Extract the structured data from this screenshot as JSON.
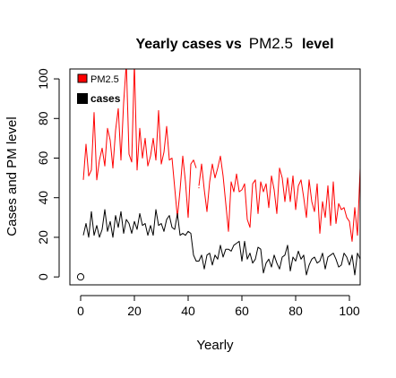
{
  "chart_data": {
    "type": "line",
    "title_parts": {
      "pre": "Yearly cases vs",
      "mid": "PM2.5",
      "post": "level"
    },
    "xlabel": "Yearly",
    "ylabel": "Cases and PM level",
    "xlim": [
      -4,
      104
    ],
    "ylim": [
      -4,
      105
    ],
    "x_ticks": [
      0,
      20,
      40,
      60,
      80,
      100
    ],
    "y_ticks": [
      0,
      20,
      40,
      60,
      80,
      100
    ],
    "grid": false,
    "legend": {
      "position": "top-left"
    },
    "series": [
      {
        "name": "PM2.5",
        "color": "#ff0000",
        "points": [
          [
            1,
            49
          ],
          [
            2,
            67
          ],
          [
            3,
            51
          ],
          [
            4,
            54
          ],
          [
            5,
            83
          ],
          [
            6,
            49
          ],
          [
            7,
            59
          ],
          [
            8,
            65
          ],
          [
            9,
            56
          ],
          [
            10,
            75
          ],
          [
            11,
            69
          ],
          [
            12,
            55
          ],
          [
            13,
            74
          ],
          [
            14,
            85
          ],
          [
            15,
            59
          ],
          [
            16,
            88
          ],
          [
            17,
            108
          ],
          [
            18,
            62
          ],
          [
            19,
            58
          ],
          [
            20,
            108
          ],
          [
            21,
            54
          ],
          [
            22,
            75
          ],
          [
            23,
            60
          ],
          [
            24,
            70
          ],
          [
            25,
            56
          ],
          [
            26,
            61
          ],
          [
            27,
            70
          ],
          [
            28,
            59
          ],
          [
            29,
            84
          ],
          [
            30,
            57
          ],
          [
            31,
            63
          ],
          [
            32,
            76
          ],
          [
            33,
            59
          ],
          [
            34,
            60
          ],
          [
            35,
            45
          ],
          [
            36,
            30
          ],
          [
            37,
            44
          ],
          [
            38,
            61
          ],
          [
            39,
            48
          ],
          [
            40,
            30
          ],
          [
            41,
            57
          ],
          [
            42,
            59
          ],
          [
            43,
            55
          ],
          [
            44,
            46
          ],
          [
            45,
            57
          ],
          [
            46,
            44
          ],
          [
            47,
            33
          ],
          [
            48,
            48
          ],
          [
            49,
            57
          ],
          [
            50,
            50
          ],
          [
            51,
            55
          ],
          [
            52,
            61
          ],
          [
            53,
            51
          ],
          [
            54,
            37
          ],
          [
            55,
            23
          ],
          [
            56,
            48
          ],
          [
            57,
            43
          ],
          [
            58,
            52
          ],
          [
            59,
            43
          ],
          [
            60,
            44
          ],
          [
            61,
            47
          ],
          [
            62,
            29
          ],
          [
            63,
            25
          ],
          [
            64,
            47
          ],
          [
            65,
            49
          ],
          [
            66,
            32
          ],
          [
            67,
            48
          ],
          [
            68,
            43
          ],
          [
            69,
            47
          ],
          [
            70,
            35
          ],
          [
            71,
            51
          ],
          [
            72,
            44
          ],
          [
            73,
            32
          ],
          [
            74,
            55
          ],
          [
            75,
            50
          ],
          [
            76,
            38
          ],
          [
            77,
            50
          ],
          [
            78,
            38
          ],
          [
            79,
            51
          ],
          [
            80,
            34
          ],
          [
            81,
            46
          ],
          [
            82,
            49
          ],
          [
            83,
            40
          ],
          [
            84,
            30
          ],
          [
            85,
            49
          ],
          [
            86,
            38
          ],
          [
            87,
            33
          ],
          [
            88,
            47
          ],
          [
            89,
            22
          ],
          [
            90,
            38
          ],
          [
            91,
            30
          ],
          [
            92,
            46
          ],
          [
            93,
            26
          ],
          [
            94,
            48
          ],
          [
            95,
            27
          ],
          [
            96,
            37
          ],
          [
            97,
            34
          ],
          [
            98,
            35
          ],
          [
            99,
            30
          ],
          [
            100,
            28
          ],
          [
            101,
            18
          ],
          [
            102,
            35
          ],
          [
            103,
            21
          ],
          [
            104,
            55
          ]
        ],
        "gap_after_x": [
          43
        ],
        "isolated_points": [
          [
            44,
            45
          ]
        ]
      },
      {
        "name": "cases",
        "color": "#000000",
        "points": [
          [
            1,
            21
          ],
          [
            2,
            27
          ],
          [
            3,
            20
          ],
          [
            4,
            33
          ],
          [
            5,
            21
          ],
          [
            6,
            26
          ],
          [
            7,
            20
          ],
          [
            8,
            24
          ],
          [
            9,
            34
          ],
          [
            10,
            23
          ],
          [
            11,
            28
          ],
          [
            12,
            20
          ],
          [
            13,
            31
          ],
          [
            14,
            25
          ],
          [
            15,
            33
          ],
          [
            16,
            22
          ],
          [
            17,
            29
          ],
          [
            18,
            27
          ],
          [
            19,
            22
          ],
          [
            20,
            28
          ],
          [
            21,
            24
          ],
          [
            22,
            32
          ],
          [
            23,
            26
          ],
          [
            24,
            27
          ],
          [
            25,
            21
          ],
          [
            26,
            26
          ],
          [
            27,
            21
          ],
          [
            28,
            34
          ],
          [
            29,
            26
          ],
          [
            30,
            27
          ],
          [
            31,
            23
          ],
          [
            32,
            29
          ],
          [
            33,
            31
          ],
          [
            34,
            25
          ],
          [
            35,
            24
          ],
          [
            36,
            32
          ],
          [
            37,
            21
          ],
          [
            38,
            22
          ],
          [
            39,
            21
          ],
          [
            40,
            23
          ],
          [
            41,
            22
          ],
          [
            42,
            11
          ],
          [
            43,
            8
          ],
          [
            44,
            8
          ],
          [
            45,
            11
          ],
          [
            46,
            4
          ],
          [
            47,
            11
          ],
          [
            48,
            12
          ],
          [
            49,
            6
          ],
          [
            50,
            11
          ],
          [
            51,
            9
          ],
          [
            52,
            16
          ],
          [
            53,
            10
          ],
          [
            54,
            14
          ],
          [
            55,
            14
          ],
          [
            56,
            13
          ],
          [
            57,
            16
          ],
          [
            58,
            17
          ],
          [
            59,
            18
          ],
          [
            60,
            8
          ],
          [
            61,
            18
          ],
          [
            62,
            9
          ],
          [
            63,
            12
          ],
          [
            64,
            7
          ],
          [
            65,
            9
          ],
          [
            66,
            15
          ],
          [
            67,
            14
          ],
          [
            68,
            2
          ],
          [
            69,
            7
          ],
          [
            70,
            9
          ],
          [
            71,
            5
          ],
          [
            72,
            11
          ],
          [
            73,
            7
          ],
          [
            74,
            4
          ],
          [
            75,
            10
          ],
          [
            76,
            11
          ],
          [
            77,
            16
          ],
          [
            78,
            3
          ],
          [
            79,
            10
          ],
          [
            80,
            8
          ],
          [
            81,
            13
          ],
          [
            82,
            9
          ],
          [
            83,
            11
          ],
          [
            84,
            1
          ],
          [
            85,
            6
          ],
          [
            86,
            9
          ],
          [
            87,
            10
          ],
          [
            88,
            7
          ],
          [
            89,
            8
          ],
          [
            90,
            12
          ],
          [
            91,
            4
          ],
          [
            92,
            10
          ],
          [
            93,
            11
          ],
          [
            94,
            12
          ],
          [
            95,
            9
          ],
          [
            96,
            5
          ],
          [
            97,
            6
          ],
          [
            98,
            12
          ],
          [
            99,
            10
          ],
          [
            100,
            6
          ],
          [
            101,
            11
          ],
          [
            102,
            1
          ],
          [
            103,
            12
          ],
          [
            104,
            9
          ]
        ]
      }
    ],
    "markers": [
      {
        "type": "open-circle",
        "x": 0,
        "y": 0
      }
    ]
  }
}
